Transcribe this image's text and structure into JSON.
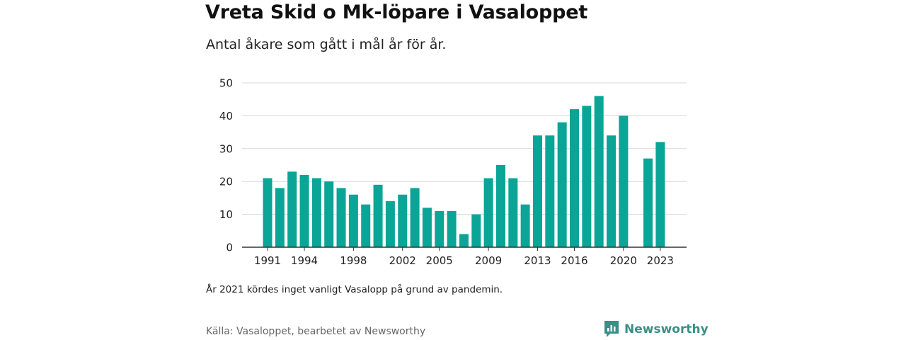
{
  "header": {
    "title": "Vreta Skid o Mk-löpare i Vasaloppet",
    "subtitle": "Antal åkare som gått i mål år för år."
  },
  "footer": {
    "note": "År 2021 kördes inget vanligt Vasalopp på grund av pandemin.",
    "source": "Källa: Vasaloppet, bearbetet av Newsworthy",
    "brand": "Newsworthy"
  },
  "colors": {
    "bar": "#0aa597",
    "grid": "#d9d9d9",
    "axis": "#333333",
    "brand": "#3a8f86"
  },
  "chart_data": {
    "type": "bar",
    "categories": [
      "1991",
      "1992",
      "1993",
      "1994",
      "1995",
      "1996",
      "1997",
      "1998",
      "1999",
      "2000",
      "2001",
      "2002",
      "2003",
      "2004",
      "2005",
      "2006",
      "2007",
      "2008",
      "2009",
      "2010",
      "2011",
      "2012",
      "2013",
      "2014",
      "2015",
      "2016",
      "2017",
      "2018",
      "2019",
      "2020",
      "2021",
      "2022",
      "2023"
    ],
    "values": [
      21,
      18,
      23,
      22,
      21,
      20,
      18,
      16,
      13,
      19,
      14,
      16,
      18,
      12,
      11,
      11,
      4,
      10,
      21,
      25,
      21,
      13,
      34,
      34,
      38,
      42,
      43,
      46,
      34,
      40,
      null,
      27,
      32
    ],
    "x_tick_labels": [
      "1991",
      "1994",
      "1998",
      "2002",
      "2005",
      "2009",
      "2013",
      "2016",
      "2020",
      "2023"
    ],
    "y_ticks": [
      0,
      10,
      20,
      30,
      40,
      50
    ],
    "ylim": [
      0,
      50
    ],
    "grid": true,
    "title": "Vreta Skid o Mk-löpare i Vasaloppet",
    "xlabel": "",
    "ylabel": ""
  }
}
